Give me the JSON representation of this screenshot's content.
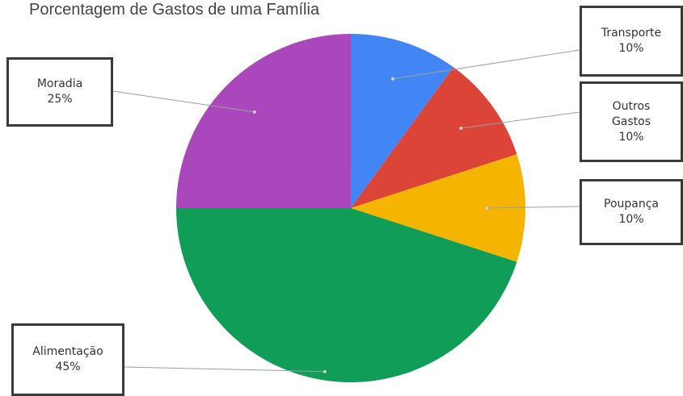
{
  "chart_data": {
    "type": "pie",
    "title": "Porcentagem de Gastos de uma Família",
    "slices": [
      {
        "label": "Transporte",
        "value": 10,
        "value_label": "10%",
        "color": "#4285F4"
      },
      {
        "label": "Outros Gastos",
        "value": 10,
        "value_label": "10%",
        "color": "#DB4437"
      },
      {
        "label": "Poupança",
        "value": 10,
        "value_label": "10%",
        "color": "#F4B400"
      },
      {
        "label": "Alimentação",
        "value": 45,
        "value_label": "45%",
        "color": "#0F9D58"
      },
      {
        "label": "Moradia",
        "value": 25,
        "value_label": "25%",
        "color": "#AB47BC"
      }
    ],
    "legend": "callout boxes"
  },
  "callouts": {
    "moradia": {
      "lines": [
        "Moradia",
        "25%"
      ]
    },
    "transporte": {
      "lines": [
        "Transporte",
        "10%"
      ]
    },
    "outros": {
      "lines": [
        "Outros",
        "Gastos",
        "10%"
      ]
    },
    "poupanca": {
      "lines": [
        "Poupança",
        "10%"
      ]
    },
    "alimentacao": {
      "lines": [
        "Alimentação",
        "45%"
      ]
    }
  }
}
